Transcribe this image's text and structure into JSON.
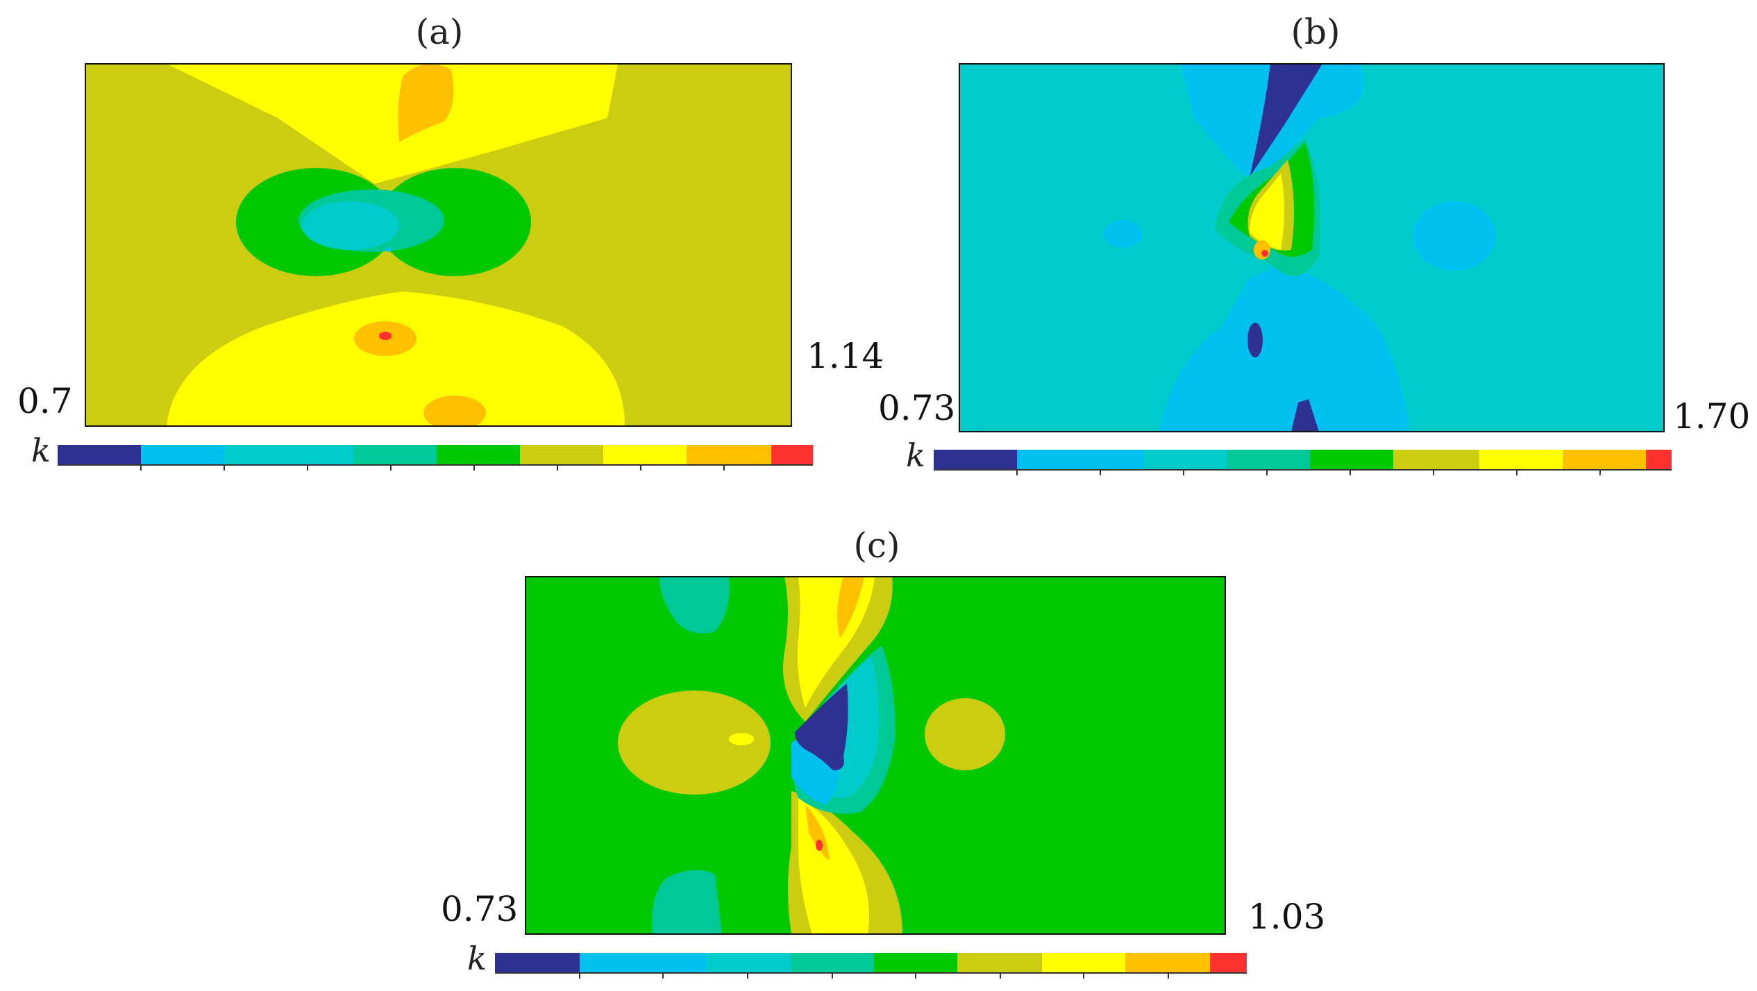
{
  "colors": {
    "navy": "#2e3192",
    "lightblue": "#00c0f0",
    "cyan": "#00cccc",
    "teal": "#00c896",
    "green": "#00c800",
    "olive": "#cccc10",
    "yellow": "#ffff00",
    "orange": "#ffc000",
    "red": "#ff3030"
  },
  "panels": [
    {
      "label": "(a)",
      "min_label": "0.7",
      "max_label": "1.14",
      "colorbar_label": "k",
      "background": "olive"
    },
    {
      "label": "(b)",
      "min_label": "0.73",
      "max_label": "1.70",
      "colorbar_label": "k",
      "background": "cyan"
    },
    {
      "label": "(c)",
      "min_label": "0.73",
      "max_label": "1.03",
      "colorbar_label": "k",
      "background": "green"
    }
  ]
}
